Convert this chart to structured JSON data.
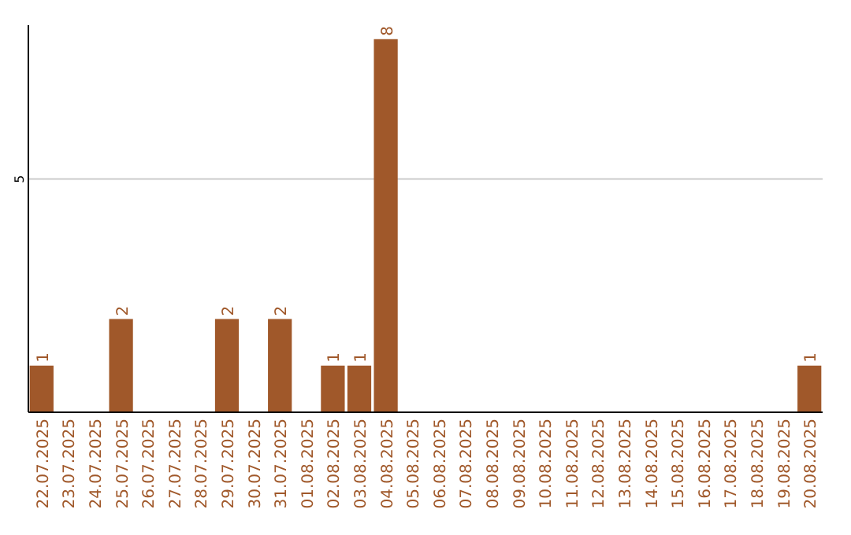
{
  "chart_data": {
    "type": "bar",
    "categories": [
      "22.07.2025",
      "23.07.2025",
      "24.07.2025",
      "25.07.2025",
      "26.07.2025",
      "27.07.2025",
      "28.07.2025",
      "29.07.2025",
      "30.07.2025",
      "31.07.2025",
      "01.08.2025",
      "02.08.2025",
      "03.08.2025",
      "04.08.2025",
      "05.08.2025",
      "06.08.2025",
      "07.08.2025",
      "08.08.2025",
      "09.08.2025",
      "10.08.2025",
      "11.08.2025",
      "12.08.2025",
      "13.08.2025",
      "14.08.2025",
      "15.08.2025",
      "16.08.2025",
      "17.08.2025",
      "18.08.2025",
      "19.08.2025",
      "20.08.2025"
    ],
    "values": [
      1,
      0,
      0,
      2,
      0,
      0,
      0,
      2,
      0,
      2,
      0,
      1,
      1,
      8,
      0,
      0,
      0,
      0,
      0,
      0,
      0,
      0,
      0,
      0,
      0,
      0,
      0,
      0,
      0,
      1
    ],
    "value_labels": [
      "1",
      null,
      null,
      "2",
      null,
      null,
      null,
      "2",
      null,
      "2",
      null,
      "1",
      "1",
      "8",
      null,
      null,
      null,
      null,
      null,
      null,
      null,
      null,
      null,
      null,
      null,
      null,
      null,
      null,
      null,
      "1"
    ],
    "color": "#a0582a",
    "ylim": [
      0,
      8.3
    ],
    "yticks": [
      5
    ],
    "grid": "y"
  }
}
